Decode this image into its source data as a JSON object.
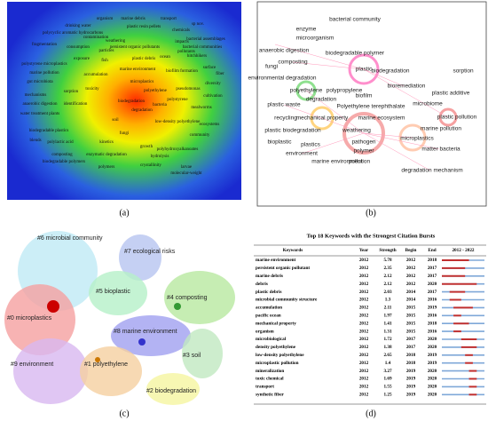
{
  "panel_a": {
    "caption": "(a)",
    "keywords": [
      "organism",
      "marine debris",
      "transport",
      "sp nov.",
      "drinking water",
      "plastic resin pellets",
      "chemicals",
      "polycyclic aromatic hydrocarbons",
      "contamination",
      "weathering",
      "bacterial assemblages",
      "fragmentation",
      "persistent organic pollutants",
      "impacts",
      "consumption",
      "particles",
      "pollutants",
      "bacterial communities",
      "polystyrene microplastics",
      "exposure",
      "fish",
      "plastic debris",
      "ocean",
      "hitchhikers",
      "surface",
      "fiber",
      "marine pollution",
      "gut microbiota",
      "accumulation",
      "biofilm formation",
      "marine environment",
      "sorption",
      "toxicity",
      "microplastics",
      "mechanisms",
      "polyethylene",
      "biodegradation",
      "degradation",
      "anaerobic digestion",
      "identification",
      "water treatment plants",
      "polystyrene",
      "pseudomonas",
      "bacteria",
      "soil",
      "low-density polyethylene",
      "biodegradable plastics",
      "polylactic acid",
      "blends",
      "composting",
      "growth",
      "kinetics",
      "polyhydroxyalkanoates",
      "enzymatic degradation",
      "hydrolysis",
      "biodegradable polymers",
      "polymers",
      "crystallinity",
      "larvae",
      "molecular-weight",
      "diversity",
      "cultivation",
      "ecosystems",
      "community",
      "mealworms",
      "fungi"
    ]
  },
  "panel_b": {
    "caption": "(b)",
    "keywords": [
      "bacterial community",
      "enzyme",
      "microorganism",
      "anaerobic digestion",
      "biodegradable polymer",
      "fungi",
      "composting",
      "plastic",
      "biodegradation",
      "sorption",
      "environmental degradation",
      "polyethylene",
      "polypropylene",
      "degradation",
      "bioremediation",
      "plastic waste",
      "Polyethylene terephthalate",
      "biofilm",
      "plastic additive",
      "microbiome",
      "recycling",
      "mechanical property",
      "marine ecosystem",
      "plastic pollution",
      "plastic biodegradation",
      "weathering",
      "marine pollution",
      "bioplastic",
      "plastics",
      "microplastics",
      "pathogen",
      "polymer",
      "environment",
      "marine environment",
      "matter bacteria",
      "pollution",
      "degradation mechanism"
    ]
  },
  "panel_c": {
    "caption": "(c)",
    "clusters": [
      "#6 microbial community",
      "#7 ecological risks",
      "#5 bioplastic",
      "#4 composting",
      "#0 microplastics",
      "#8 marine environment",
      "#3 soil",
      "#9 environment",
      "#1 polyethylene",
      "#2 biodegradation"
    ]
  },
  "panel_d": {
    "caption": "(d)",
    "title": "Top 18 Keywords with the Strongest Citation Bursts",
    "columns": [
      "Keywords",
      "Year",
      "Strength",
      "Begin",
      "End"
    ],
    "timeline": {
      "label": "2012 - 2022",
      "start": 2012,
      "end": 2022
    },
    "rows": [
      [
        "marine environment",
        2012,
        5.78,
        2012,
        2018
      ],
      [
        "persistent organic pollutant",
        2012,
        2.35,
        2012,
        2017
      ],
      [
        "marine debris",
        2012,
        2.12,
        2012,
        2017
      ],
      [
        "debris",
        2012,
        2.12,
        2012,
        2020
      ],
      [
        "plastic debris",
        2012,
        2.03,
        2014,
        2017
      ],
      [
        "microbial community structure",
        2012,
        1.3,
        2014,
        2016
      ],
      [
        "accumulation",
        2012,
        2.11,
        2015,
        2019
      ],
      [
        "pacific ocean",
        2012,
        1.97,
        2015,
        2016
      ],
      [
        "mechanical property",
        2012,
        1.41,
        2015,
        2018
      ],
      [
        "organism",
        2012,
        1.31,
        2015,
        2016
      ],
      [
        "microbiological",
        2012,
        1.72,
        2017,
        2020
      ],
      [
        "density polyethylene",
        2012,
        1.38,
        2017,
        2020
      ],
      [
        "low-density polyethylene",
        2012,
        2.65,
        2018,
        2019
      ],
      [
        "microplastic pollution",
        2012,
        1.4,
        2018,
        2019
      ],
      [
        "mineralization",
        2012,
        3.27,
        2019,
        2020
      ],
      [
        "toxic chemical",
        2012,
        1.69,
        2019,
        2020
      ],
      [
        "transport",
        2012,
        1.55,
        2019,
        2020
      ],
      [
        "synthetic fiber",
        2012,
        1.25,
        2019,
        2020
      ]
    ]
  }
}
